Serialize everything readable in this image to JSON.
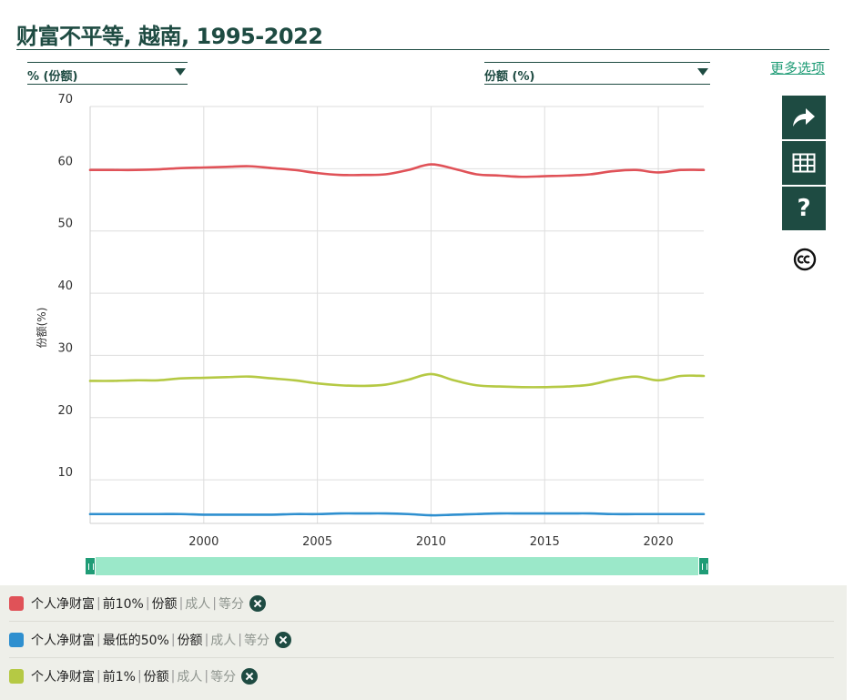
{
  "header": {
    "title": "财富不平等, 越南, 1995-2022"
  },
  "controls": {
    "left_dropdown": "% (份额)",
    "right_dropdown": "份额 (%)",
    "more_options": "更多选项"
  },
  "side_buttons": [
    "share-icon",
    "table-icon",
    "help-icon",
    "cc-icon"
  ],
  "help_glyph": "?",
  "colors": {
    "top10": "#e05258",
    "bottom50": "#2e8fcf",
    "top1": "#b5c944",
    "accent": "#1e4b42",
    "link": "#1f9c76",
    "slider": "#9be8c9"
  },
  "chart_data": {
    "type": "line",
    "title": "",
    "xlabel": "",
    "ylabel": "份额(%)",
    "xlim": [
      1995,
      2022
    ],
    "ylim": [
      3,
      70
    ],
    "yticks": [
      10,
      20,
      30,
      40,
      50,
      60,
      70
    ],
    "xticks": [
      2000,
      2005,
      2010,
      2015,
      2020
    ],
    "grid": true,
    "x": [
      1995,
      1996,
      1997,
      1998,
      1999,
      2000,
      2001,
      2002,
      2003,
      2004,
      2005,
      2006,
      2007,
      2008,
      2009,
      2010,
      2011,
      2012,
      2013,
      2014,
      2015,
      2016,
      2017,
      2018,
      2019,
      2020,
      2021,
      2022
    ],
    "series": [
      {
        "name": "个人净财富 | 前10% | 份额 | 成人 | 等分",
        "key": "top10",
        "values": [
          59.8,
          59.8,
          59.8,
          59.9,
          60.1,
          60.2,
          60.3,
          60.4,
          60.1,
          59.8,
          59.3,
          59.0,
          59.0,
          59.1,
          59.8,
          60.7,
          60.0,
          59.1,
          58.9,
          58.7,
          58.8,
          58.9,
          59.1,
          59.6,
          59.8,
          59.4,
          59.8,
          59.8
        ]
      },
      {
        "name": "个人净财富 | 最低的50% | 份额 | 成人 | 等分",
        "key": "bottom50",
        "values": [
          4.5,
          4.5,
          4.5,
          4.5,
          4.5,
          4.4,
          4.4,
          4.4,
          4.4,
          4.5,
          4.5,
          4.6,
          4.6,
          4.6,
          4.5,
          4.3,
          4.4,
          4.5,
          4.6,
          4.6,
          4.6,
          4.6,
          4.6,
          4.5,
          4.5,
          4.5,
          4.5,
          4.5
        ]
      },
      {
        "name": "个人净财富 | 前1% | 份额 | 成人 | 等分",
        "key": "top1",
        "values": [
          25.9,
          25.9,
          26.0,
          26.0,
          26.3,
          26.4,
          26.5,
          26.6,
          26.3,
          26.0,
          25.5,
          25.2,
          25.1,
          25.3,
          26.1,
          27.0,
          26.0,
          25.2,
          25.0,
          24.9,
          24.9,
          25.0,
          25.3,
          26.1,
          26.6,
          26.0,
          26.7,
          26.7
        ]
      }
    ]
  },
  "legend": [
    {
      "label": "个人净财富",
      "metric": "前10%",
      "type": "份额",
      "pop": "成人",
      "unit": "等分",
      "color": "#e05258"
    },
    {
      "label": "个人净财富",
      "metric": "最低的50%",
      "type": "份额",
      "pop": "成人",
      "unit": "等分",
      "color": "#2e8fcf"
    },
    {
      "label": "个人净财富",
      "metric": "前1%",
      "type": "份额",
      "pop": "成人",
      "unit": "等分",
      "color": "#b5c944"
    }
  ]
}
